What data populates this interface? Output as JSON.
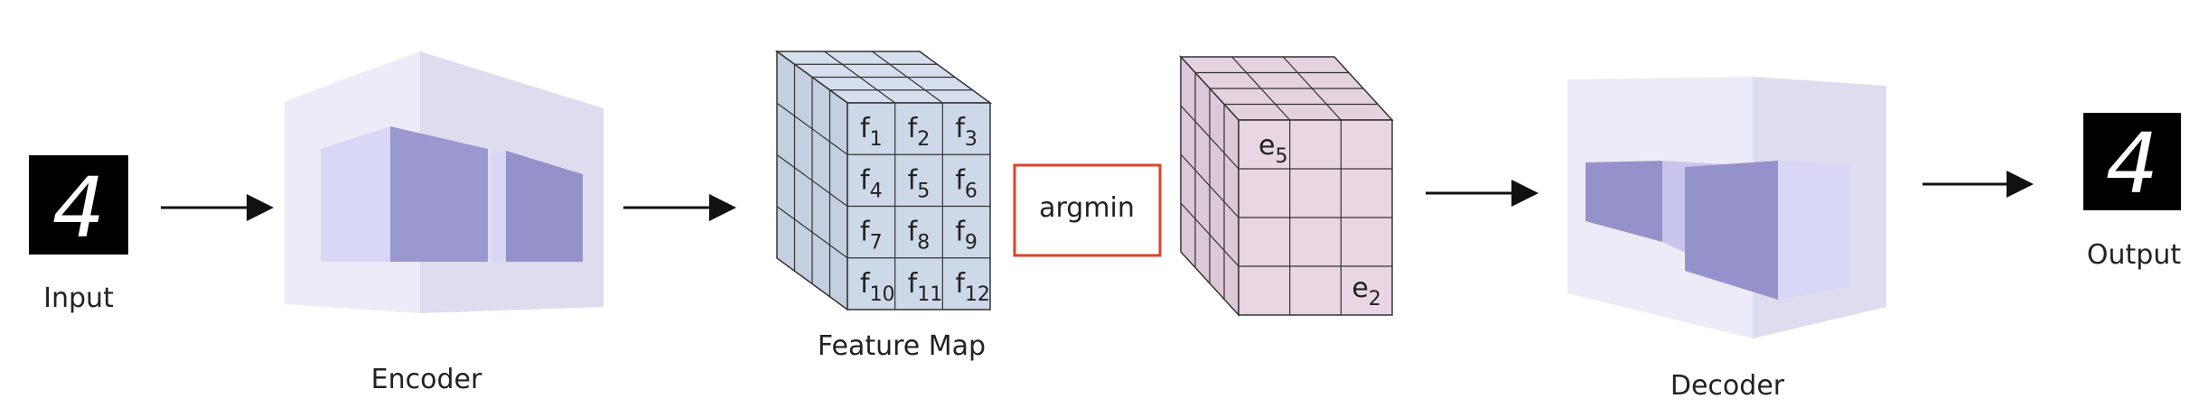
{
  "labels": {
    "input": "Input",
    "encoder": "Encoder",
    "feature_map": "Feature Map",
    "argmin": "argmin",
    "decoder": "Decoder",
    "output": "Output"
  },
  "digit": "4",
  "feature_cells": [
    {
      "base": "f",
      "sub": "1"
    },
    {
      "base": "f",
      "sub": "2"
    },
    {
      "base": "f",
      "sub": "3"
    },
    {
      "base": "f",
      "sub": "4"
    },
    {
      "base": "f",
      "sub": "5"
    },
    {
      "base": "f",
      "sub": "6"
    },
    {
      "base": "f",
      "sub": "7"
    },
    {
      "base": "f",
      "sub": "8"
    },
    {
      "base": "f",
      "sub": "9"
    },
    {
      "base": "f",
      "sub": "10"
    },
    {
      "base": "f",
      "sub": "11"
    },
    {
      "base": "f",
      "sub": "12"
    }
  ],
  "codebook_cells": [
    {
      "base": "e",
      "sub": "5"
    },
    {
      "base": "e",
      "sub": "2"
    }
  ],
  "colors": {
    "feature_cube": "#cdd8e8",
    "codebook_cube": "#e8d6e3",
    "argmin_border": "#d9442b",
    "encoder_face": "#a9a6da",
    "encoder_shell": "#e7e6f4"
  }
}
